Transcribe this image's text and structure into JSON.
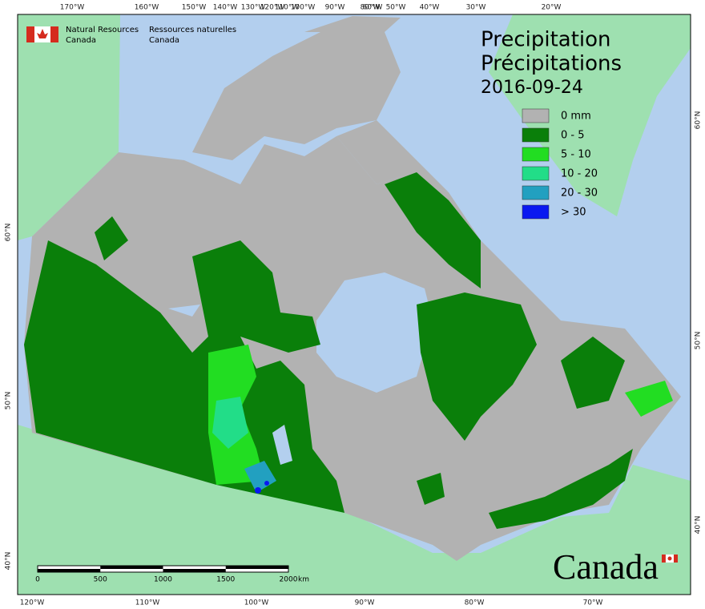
{
  "header": {
    "org_en": "Natural Resources",
    "org_en_2": "Canada",
    "org_fr": "Ressources naturelles",
    "org_fr_2": "Canada"
  },
  "title": {
    "en": "Precipitation",
    "fr": "Précipitations",
    "date": "2016-09-24"
  },
  "legend": [
    {
      "label": "0 mm",
      "color": "#b2b2b2"
    },
    {
      "label": "0 - 5",
      "color": "#0a7f0a"
    },
    {
      "label": "5 - 10",
      "color": "#22dd22"
    },
    {
      "label": "10 - 20",
      "color": "#22dd88"
    },
    {
      "label": "20 - 30",
      "color": "#22a0c0"
    },
    {
      "label": "> 30",
      "color": "#0a18f0"
    }
  ],
  "graticule": {
    "top": [
      "170°W",
      "160°W",
      "150°W",
      "140°W",
      "130°W",
      "120°W",
      "110°W",
      "100°W",
      "90°W",
      "80°W",
      "60°W",
      "50°W",
      "40°W",
      "30°W",
      "20°W"
    ],
    "bottom": [
      "120°W",
      "110°W",
      "100°W",
      "90°W",
      "80°W",
      "70°W"
    ],
    "left": [
      "60°N",
      "50°N",
      "40°N"
    ],
    "right": [
      "60°N",
      "50°N",
      "40°N"
    ]
  },
  "scale_bar": {
    "labels": [
      "0",
      "500",
      "1000",
      "1500",
      "2000"
    ],
    "unit": "km"
  },
  "wordmark": "Canada"
}
